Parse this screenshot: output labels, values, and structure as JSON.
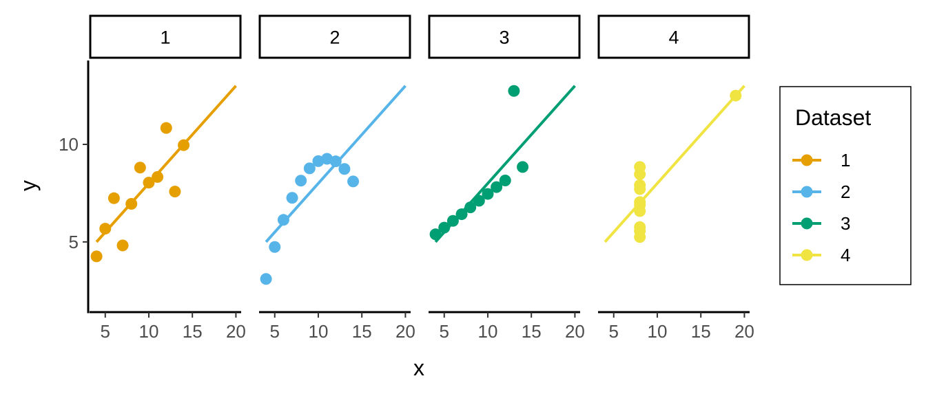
{
  "chart_data": {
    "type": "scatter",
    "facet_by": "Dataset",
    "xlabel": "x",
    "ylabel": "y",
    "xlim": [
      3.2,
      20.6
    ],
    "ylim": [
      1.4,
      14.3
    ],
    "x_ticks": [
      5,
      10,
      15,
      20
    ],
    "y_ticks": [
      5,
      10
    ],
    "grid": false,
    "legend": {
      "title": "Dataset",
      "placement": "right",
      "entries": [
        "1",
        "2",
        "3",
        "4"
      ]
    },
    "series": [
      {
        "name": "1",
        "color": "#E69F00",
        "x": [
          10,
          8,
          13,
          9,
          11,
          14,
          6,
          4,
          12,
          7,
          5
        ],
        "y": [
          8.04,
          6.95,
          7.58,
          8.81,
          8.33,
          9.96,
          7.24,
          4.26,
          10.84,
          4.82,
          5.68
        ],
        "fit_line": {
          "x": [
            4,
            20
          ],
          "y": [
            5.0,
            13.0
          ]
        }
      },
      {
        "name": "2",
        "color": "#56B4E9",
        "x": [
          10,
          8,
          13,
          9,
          11,
          14,
          6,
          4,
          12,
          7,
          5
        ],
        "y": [
          9.14,
          8.14,
          8.74,
          8.77,
          9.26,
          8.1,
          6.13,
          3.1,
          9.13,
          7.26,
          4.74
        ],
        "fit_line": {
          "x": [
            4,
            20
          ],
          "y": [
            5.0,
            13.0
          ]
        }
      },
      {
        "name": "3",
        "color": "#009E73",
        "x": [
          10,
          8,
          13,
          9,
          11,
          14,
          6,
          4,
          12,
          7,
          5
        ],
        "y": [
          7.46,
          6.77,
          12.74,
          7.11,
          7.81,
          8.84,
          6.08,
          5.39,
          8.15,
          6.42,
          5.73
        ],
        "fit_line": {
          "x": [
            4,
            20
          ],
          "y": [
            5.0,
            13.0
          ]
        }
      },
      {
        "name": "4",
        "color": "#F0E442",
        "x": [
          8,
          8,
          8,
          8,
          8,
          8,
          8,
          19,
          8,
          8,
          8
        ],
        "y": [
          6.58,
          5.76,
          7.71,
          8.84,
          8.47,
          7.04,
          5.25,
          12.5,
          5.56,
          7.91,
          6.89
        ],
        "fit_line": {
          "x": [
            4,
            20
          ],
          "y": [
            5.0,
            13.0
          ]
        }
      }
    ]
  }
}
